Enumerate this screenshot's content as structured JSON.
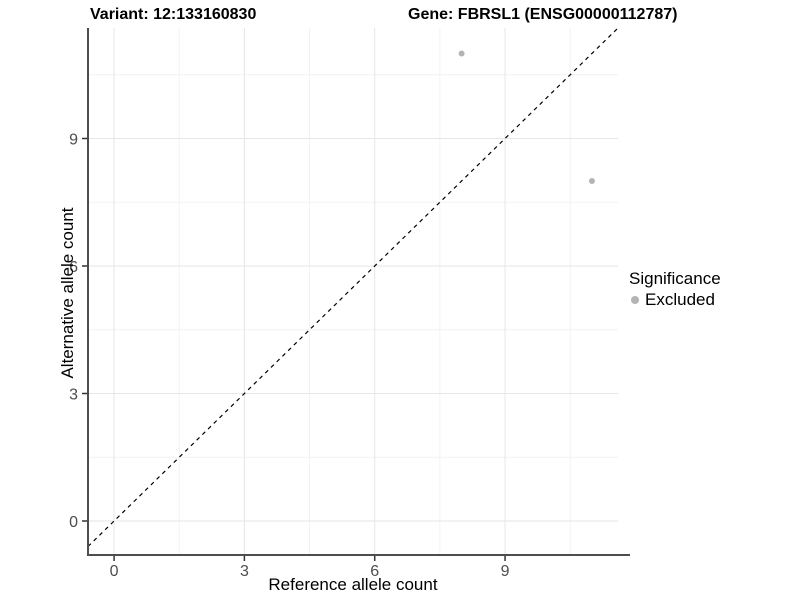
{
  "figure": {
    "title_variant": "Variant: 12:133160830",
    "title_gene": "Gene: FBRSL1 (ENSG00000112787)"
  },
  "chart_data": {
    "type": "scatter",
    "title_left": "Variant: 12:133160830",
    "title_right": "Gene: FBRSL1 (ENSG00000112787)",
    "xlabel": "Reference allele count",
    "ylabel": "Alternative allele count",
    "xlim": [
      -0.6,
      11.6
    ],
    "ylim": [
      -0.8,
      11.6
    ],
    "x_ticks": [
      0,
      3,
      6,
      9
    ],
    "y_ticks": [
      0,
      3,
      6,
      9
    ],
    "x_minor_gridlines": [
      1.5,
      4.5,
      7.5,
      10.5
    ],
    "y_minor_gridlines": [
      1.5,
      4.5,
      7.5,
      10.5
    ],
    "grid": true,
    "series": [
      {
        "name": "Excluded",
        "color": "#b4b4b4",
        "points": [
          {
            "x": 8,
            "y": 11
          },
          {
            "x": 11,
            "y": 8
          }
        ]
      }
    ],
    "reference_line": {
      "equation": "y = x",
      "style": "dashed",
      "color": "#000000"
    },
    "legend": {
      "position": "right",
      "title": "Significance",
      "items": [
        {
          "label": "Excluded",
          "color": "#b4b4b4"
        }
      ]
    },
    "colors": {
      "axis_line": "#4d4d4d",
      "tick_mark": "#333333",
      "tick_label": "#4d4d4d",
      "grid_major": "#e6e6e6",
      "grid_minor": "#f2f2f2",
      "point": "#b4b4b4"
    }
  }
}
